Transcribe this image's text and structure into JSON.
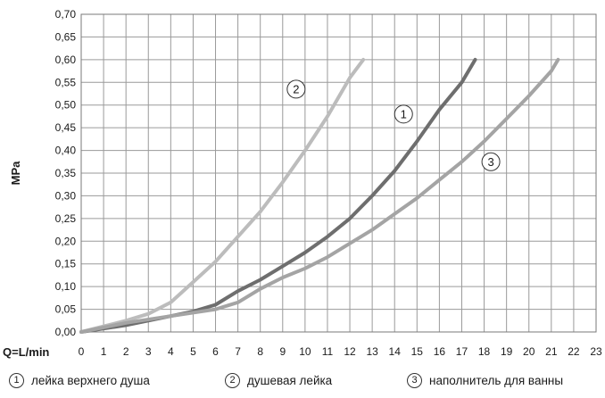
{
  "chart_data": {
    "type": "line",
    "title": "",
    "xlabel": "Q=L/min",
    "ylabel": "MPa",
    "xlim": [
      0,
      23
    ],
    "ylim": [
      0,
      0.7
    ],
    "grid": true,
    "legend_position": "bottom",
    "x_ticks": [
      "0",
      "1",
      "2",
      "3",
      "4",
      "5",
      "6",
      "7",
      "8",
      "9",
      "10",
      "11",
      "12",
      "13",
      "14",
      "15",
      "16",
      "17",
      "18",
      "19",
      "20",
      "21",
      "22",
      "23"
    ],
    "y_ticks": [
      "0,00",
      "0,05",
      "0,10",
      "0,15",
      "0,20",
      "0,25",
      "0,30",
      "0,35",
      "0,40",
      "0,45",
      "0,50",
      "0,55",
      "0,60",
      "0,65",
      "0,70"
    ],
    "series": [
      {
        "name": "лейка верхнего душа",
        "marker": "1",
        "color": "#6e6e6e",
        "x": [
          0,
          2,
          4,
          5,
          6,
          7,
          8,
          9,
          10,
          11,
          12,
          13,
          14,
          15,
          16,
          17,
          17.6
        ],
        "y": [
          0,
          0.015,
          0.035,
          0.045,
          0.06,
          0.09,
          0.115,
          0.145,
          0.175,
          0.21,
          0.25,
          0.3,
          0.355,
          0.42,
          0.49,
          0.55,
          0.6
        ]
      },
      {
        "name": "душевая лейка",
        "marker": "2",
        "color": "#bcbcbc",
        "x": [
          0,
          2,
          3,
          4,
          5,
          6,
          7,
          8,
          9,
          10,
          11,
          12,
          12.6
        ],
        "y": [
          0,
          0.025,
          0.04,
          0.065,
          0.11,
          0.155,
          0.21,
          0.265,
          0.33,
          0.4,
          0.475,
          0.56,
          0.6
        ]
      },
      {
        "name": "наполнитель для ванны",
        "marker": "3",
        "color": "#a4a4a4",
        "x": [
          0,
          2,
          4,
          6,
          7,
          8,
          9,
          10,
          11,
          12,
          13,
          14,
          15,
          16,
          17,
          18,
          19,
          20,
          21,
          21.3
        ],
        "y": [
          0,
          0.02,
          0.035,
          0.05,
          0.065,
          0.095,
          0.12,
          0.14,
          0.165,
          0.195,
          0.225,
          0.26,
          0.295,
          0.335,
          0.375,
          0.42,
          0.47,
          0.52,
          0.575,
          0.6
        ]
      }
    ],
    "annotations": [
      {
        "text": "2",
        "x": 9.6,
        "y": 0.535
      },
      {
        "text": "1",
        "x": 14.4,
        "y": 0.48
      },
      {
        "text": "3",
        "x": 18.3,
        "y": 0.375
      }
    ]
  }
}
